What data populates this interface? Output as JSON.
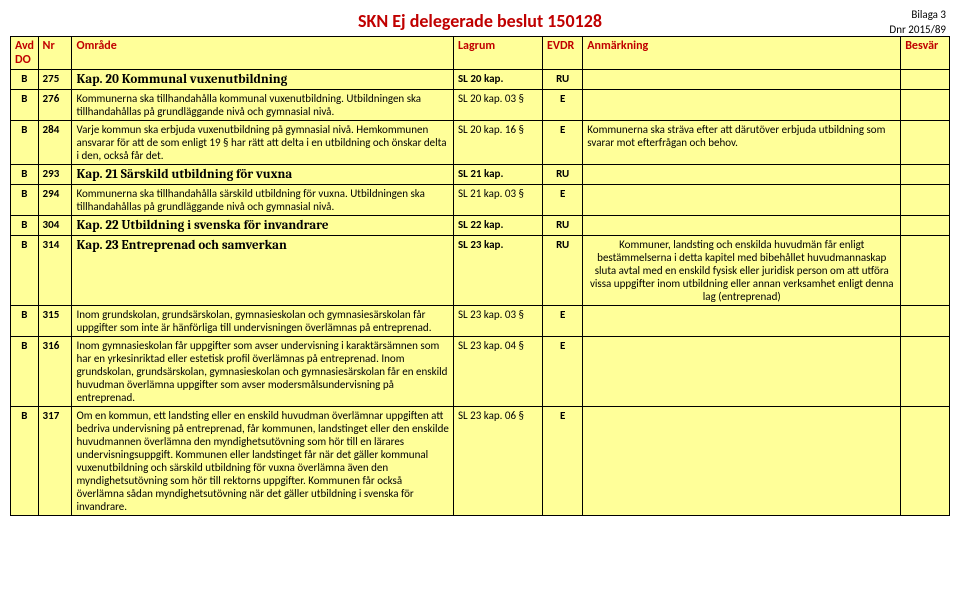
{
  "meta": {
    "title": "SKN Ej delegerade beslut 150128",
    "bilaga": "Bilaga 3",
    "dnr": "Dnr 2015/89"
  },
  "headers": {
    "avd": "Avd DO",
    "nr": "Nr",
    "omrade": "Område",
    "lagrum": "Lagrum",
    "evdr": "EVDR",
    "anm": "Anmärkning",
    "besvar": "Besvär"
  },
  "rows": [
    {
      "avd": "B",
      "nr": "275",
      "omrade": "Kap. 20 Kommunal vuxenutbildning",
      "lagrum": "SL 20 kap.",
      "evdr": "RU",
      "anm": "",
      "kap": true
    },
    {
      "avd": "B",
      "nr": "276",
      "omrade": "Kommunerna ska tillhandahålla kommunal vuxenutbildning. Utbildningen ska tillhandahållas på grundläggande nivå och gymnasial nivå.",
      "lagrum": "SL 20 kap. 03 §",
      "evdr": "E",
      "anm": ""
    },
    {
      "avd": "B",
      "nr": "284",
      "omrade": "Varje kommun ska erbjuda vuxenutbildning på gymnasial nivå. Hemkommunen ansvarar för att de som enligt 19 § har rätt att delta i en utbildning och önskar delta i den, också får det.",
      "lagrum": "SL 20 kap. 16 §",
      "evdr": "E",
      "anm": "Kommunerna ska sträva efter att därutöver erbjuda utbildning som svarar mot efterfrågan och behov."
    },
    {
      "avd": "B",
      "nr": "293",
      "omrade": "Kap. 21 Särskild utbildning för vuxna",
      "lagrum": "SL 21 kap.",
      "evdr": "RU",
      "anm": "",
      "kap": true
    },
    {
      "avd": "B",
      "nr": "294",
      "omrade": "Kommunerna ska tillhandahålla särskild utbildning för vuxna. Utbildningen ska tillhandahållas på grundläggande nivå och gymnasial nivå.",
      "lagrum": "SL 21 kap. 03 §",
      "evdr": "E",
      "anm": ""
    },
    {
      "avd": "B",
      "nr": "304",
      "omrade": "Kap. 22 Utbildning i svenska för invandrare",
      "lagrum": "SL 22 kap.",
      "evdr": "RU",
      "anm": "",
      "kap": true
    },
    {
      "avd": "B",
      "nr": "314",
      "omrade": "Kap. 23 Entreprenad och samverkan",
      "lagrum": "SL 23 kap.",
      "evdr": "RU",
      "anm": "Kommuner, landsting och enskilda huvudmän får enligt bestämmelserna i detta kapitel med bibehållet huvudmannaskap sluta avtal med en enskild fysisk eller juridisk person om att utföra vissa uppgifter inom utbildning eller annan verksamhet enligt denna lag (entreprenad)",
      "kap": true,
      "anm_center": true
    },
    {
      "avd": "B",
      "nr": "315",
      "omrade": "Inom grundskolan, grundsärskolan, gymnasieskolan och gymnasiesärskolan får uppgifter som inte är hänförliga till undervisningen överlämnas på entreprenad.",
      "lagrum": "SL 23 kap. 03 §",
      "evdr": "E",
      "anm": ""
    },
    {
      "avd": "B",
      "nr": "316",
      "omrade": "Inom gymnasieskolan får uppgifter som avser undervisning i karaktärsämnen som har en yrkesinriktad eller estetisk profil överlämnas på entreprenad. Inom grundskolan, grundsärskolan, gymnasieskolan och gymnasiesärskolan får en enskild huvudman överlämna uppgifter som avser modersmålsundervisning på entreprenad.",
      "lagrum": "SL 23 kap. 04 §",
      "evdr": "E",
      "anm": ""
    },
    {
      "avd": "B",
      "nr": "317",
      "omrade": "Om en kommun, ett landsting eller en enskild huvudman överlämnar uppgiften att bedriva undervisning på entreprenad, får kommunen, landstinget eller den enskilde huvudmannen överlämna den myndighetsutövning som hör till en lärares undervisningsuppgift. Kommunen eller landstinget får när det gäller kommunal vuxenutbildning och särskild utbildning för vuxna överlämna även den myndighetsutövning som hör till rektorns uppgifter. Kommunen får också överlämna sådan myndighetsutövning när det gäller utbildning i svenska för invandrare.",
      "lagrum": "SL 23 kap. 06 §",
      "evdr": "E",
      "anm": ""
    }
  ]
}
